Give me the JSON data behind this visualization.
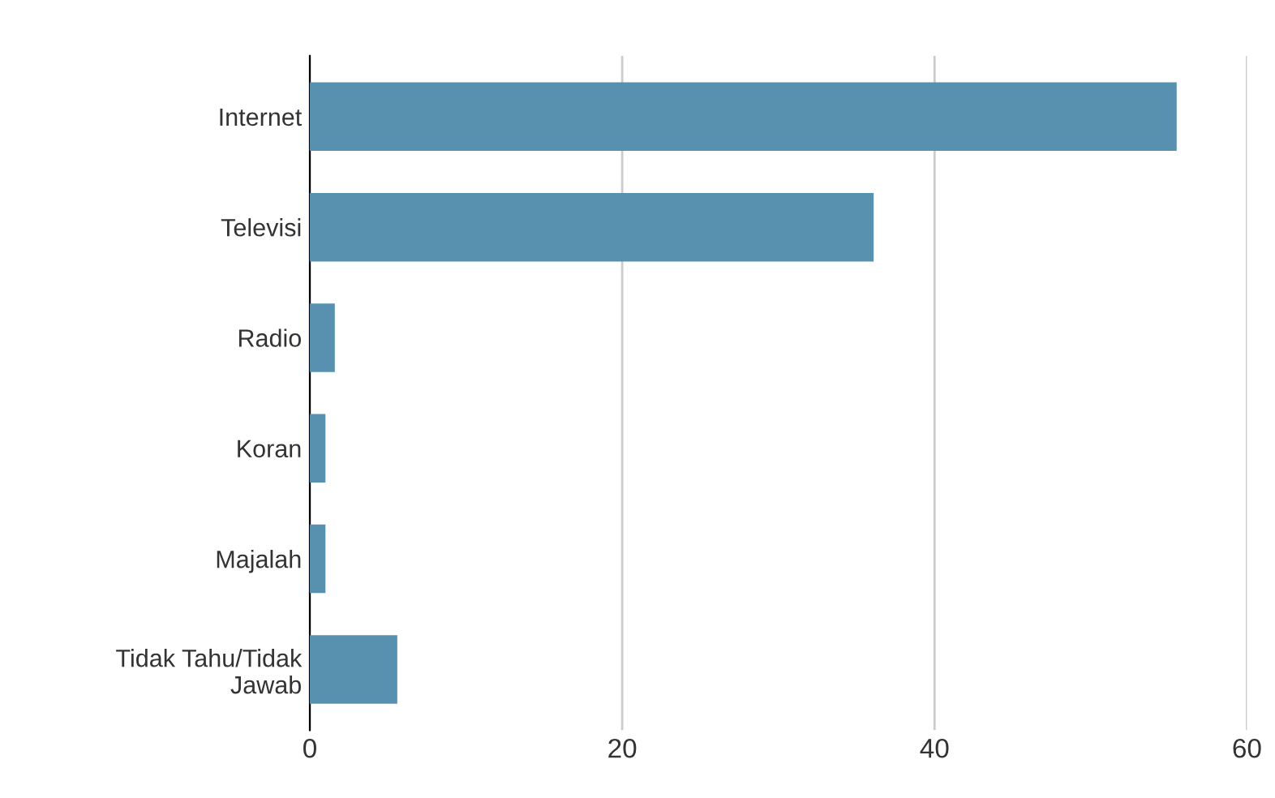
{
  "chart_data": {
    "type": "bar",
    "orientation": "horizontal",
    "categories": [
      "Internet",
      "Televisi",
      "Radio",
      "Koran",
      "Majalah",
      "Tidak Tahu/Tidak\nJawab"
    ],
    "values": [
      55.5,
      36.1,
      1.6,
      1.0,
      1.0,
      5.6
    ],
    "color": "#5890b0",
    "xlim": [
      0,
      60
    ],
    "xticks": [
      0,
      20,
      40,
      60
    ],
    "grid": "x"
  }
}
